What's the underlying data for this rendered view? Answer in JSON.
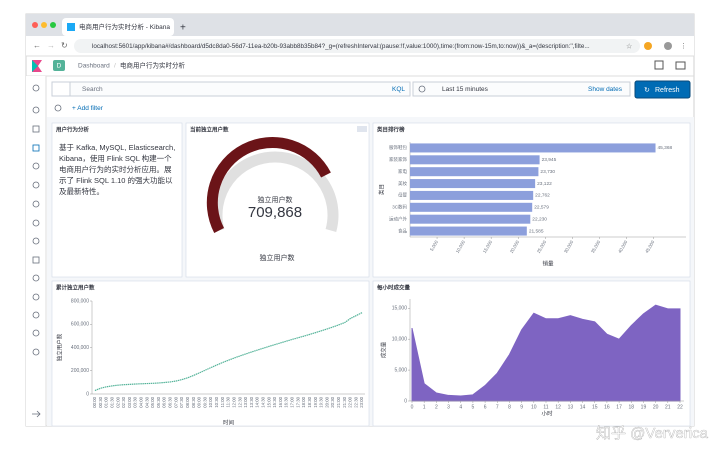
{
  "browser": {
    "tab_title": "电商用户行为实时分析 - Kibana",
    "url": "localhost:5601/app/kibana#/dashboard/d5dc8da0-56d7-11ea-b20b-93abb8b35b84?_g=(refreshInterval:(pause:!f,value:1000),time:(from:now-15m,to:now))&_a=(description:'',filte..."
  },
  "header": {
    "badge": "D",
    "breadcrumb": "Dashboard",
    "title": "电商用户行为实时分析"
  },
  "query": {
    "search": "Search",
    "language": "KQL",
    "time": "Last 15 minutes",
    "show_dates": "Show dates",
    "refresh": "Refresh",
    "add_filter": "+ Add filter"
  },
  "panels": {
    "markdown": {
      "title": "用户行为分析",
      "text": "基于 Kafka, MySQL, Elasticsearch, Kibana，使用 Flink SQL 构建一个电商用户行为的实时分析应用。展示了 Flink SQL 1.10 的强大功能以及最新特性。"
    },
    "gauge": {
      "title": "当前独立用户数",
      "label": "独立用户数",
      "value": "709,868",
      "footer": "独立用户数"
    }
  },
  "chart_data": [
    {
      "type": "hbar",
      "title": "类目排行榜",
      "categories": [
        "服饰鞋包",
        "家装家饰",
        "家电",
        "美妆",
        "母婴",
        "3C数码",
        "运动户外",
        "食品"
      ],
      "values": [
        45368,
        23945,
        23730,
        23122,
        22762,
        22579,
        22230,
        21585
      ],
      "value_labels": [
        "45,368",
        "23,945",
        "23,730",
        "23,122",
        "22,762",
        "22,579",
        "22,230",
        "21,585"
      ],
      "xlim": [
        0,
        51000
      ],
      "xticks": [
        {
          "value": 5000,
          "label": "5,000"
        },
        {
          "value": 10000,
          "label": "10,000"
        },
        {
          "value": 15000,
          "label": "15,000"
        },
        {
          "value": 20000,
          "label": "20,000"
        },
        {
          "value": 25000,
          "label": "25,000"
        },
        {
          "value": 30000,
          "label": "30,000"
        },
        {
          "value": 35000,
          "label": "35,000"
        },
        {
          "value": 40000,
          "label": "40,000"
        },
        {
          "value": 45000,
          "label": "45,000"
        }
      ],
      "x_label": "销量",
      "y_label": "类目",
      "color": "#8c9fdc"
    },
    {
      "type": "line",
      "title": "累计独立用户数",
      "categories": [
        "00:00",
        "00:30",
        "01:00",
        "01:30",
        "02:00",
        "02:30",
        "03:00",
        "03:30",
        "04:00",
        "04:30",
        "05:00",
        "05:30",
        "06:00",
        "06:30",
        "07:00",
        "07:30",
        "08:00",
        "08:30",
        "09:00",
        "09:30",
        "10:00",
        "10:30",
        "11:00",
        "11:30",
        "12:00",
        "12:30",
        "13:00",
        "13:30",
        "14:00",
        "14:30",
        "15:00",
        "15:30",
        "16:00",
        "16:30",
        "17:00",
        "17:30",
        "18:00",
        "18:30",
        "19:00",
        "19:30",
        "20:00",
        "20:30",
        "21:00",
        "21:30",
        "22:00",
        "22:30",
        "23:00"
      ],
      "values": [
        30000,
        50000,
        62000,
        70000,
        76000,
        80000,
        83000,
        86000,
        88000,
        90000,
        92000,
        95000,
        99000,
        104000,
        112000,
        124000,
        140000,
        160000,
        182000,
        205000,
        228000,
        250000,
        271000,
        291000,
        310000,
        328000,
        345000,
        362000,
        378000,
        394000,
        410000,
        425000,
        440000,
        455000,
        470000,
        484000,
        498000,
        513000,
        528000,
        544000,
        560000,
        577000,
        595000,
        614000,
        650000,
        675000,
        700000
      ],
      "ylim": [
        0,
        800000
      ],
      "yticks": [
        0,
        {
          "value": 200000,
          "label": "200,000"
        },
        {
          "value": 400000,
          "label": "400,000"
        },
        {
          "value": 600000,
          "label": "600,000"
        },
        {
          "value": 800000,
          "label": "800,000"
        }
      ],
      "x_label": "时间",
      "y_label": "独立用户数",
      "color": "#54b399"
    },
    {
      "type": "area",
      "title": "每小时成交量",
      "x": [
        0,
        1,
        2,
        3,
        4,
        5,
        6,
        7,
        8,
        9,
        10,
        11,
        12,
        13,
        14,
        15,
        16,
        17,
        18,
        19,
        20,
        21,
        22
      ],
      "values": [
        11800,
        2800,
        1300,
        900,
        800,
        1000,
        2500,
        4500,
        7500,
        11500,
        14200,
        13300,
        13300,
        13800,
        13200,
        12800,
        10800,
        10000,
        12200,
        14100,
        15500,
        14900,
        14900
      ],
      "xlim": [
        0,
        22
      ],
      "xticks": [
        0,
        1,
        2,
        3,
        4,
        5,
        6,
        7,
        8,
        9,
        10,
        11,
        12,
        13,
        14,
        15,
        16,
        17,
        18,
        19,
        20,
        21,
        22
      ],
      "ylim": [
        0,
        16500
      ],
      "yticks": [
        0,
        {
          "value": 5000,
          "label": "5,000"
        },
        {
          "value": 10000,
          "label": "10,000"
        },
        {
          "value": 15000,
          "label": "15,000"
        }
      ],
      "x_label": "小时",
      "y_label": "成交量",
      "color": "#7e64c2"
    }
  ],
  "watermark": "知乎 @Ververica"
}
